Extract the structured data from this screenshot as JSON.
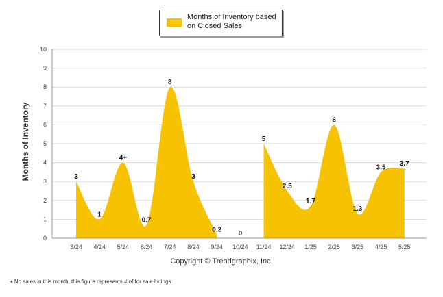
{
  "chart_data": {
    "type": "area",
    "categories": [
      "3/24",
      "4/24",
      "5/24",
      "6/24",
      "7/24",
      "8/24",
      "9/24",
      "10/24",
      "11/24",
      "12/24",
      "1/25",
      "2/25",
      "3/25",
      "4/25",
      "5/25"
    ],
    "series": [
      {
        "name": "Months of Inventory based on Closed Sales",
        "values": [
          3,
          1,
          4,
          0.7,
          8,
          3,
          0.2,
          0,
          5,
          2.5,
          1.7,
          6,
          1.3,
          3.5,
          3.7
        ],
        "labels": [
          "3",
          "1",
          "4+",
          "0.7",
          "8",
          "3",
          "0.2",
          "0",
          "5",
          "2.5",
          "1.7",
          "6",
          "1.3",
          "3.5",
          "3.7"
        ],
        "color": "#F7C200"
      }
    ],
    "yticks": [
      "0",
      "1",
      "2",
      "3",
      "4",
      "5",
      "6",
      "7",
      "8",
      "9",
      "10"
    ],
    "ylim": [
      0,
      10
    ],
    "ylabel": "Months of Inventory",
    "xlabel": "",
    "grid": true,
    "legend_position": "top"
  },
  "copyright": "Copyright © Trendgraphix, Inc.",
  "footnote": "+ No sales in this month, this figure represents # of for sale listings"
}
